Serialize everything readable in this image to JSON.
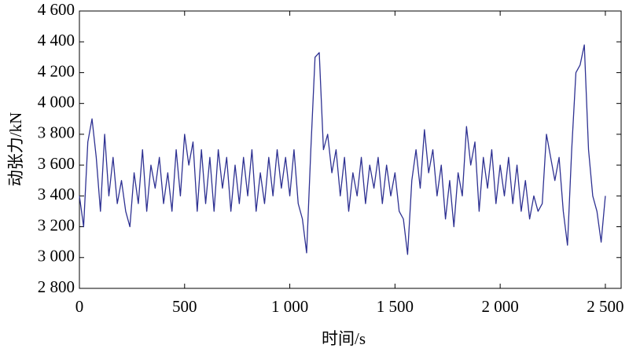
{
  "chart_data": {
    "type": "line",
    "x_label": "时间/s",
    "y_label": "动张力/kN",
    "xlim": [
      0,
      2575
    ],
    "ylim": [
      2800,
      4600
    ],
    "xticks": [
      0,
      500,
      {
        "value": 1000,
        "label": "1 000"
      },
      {
        "value": 1500,
        "label": "1 500"
      },
      {
        "value": 2000,
        "label": "2 000"
      },
      {
        "value": 2500,
        "label": "2 500"
      }
    ],
    "yticks": [
      {
        "value": 2800,
        "label": "2 800"
      },
      {
        "value": 3000,
        "label": "3 000"
      },
      {
        "value": 3200,
        "label": "3 200"
      },
      {
        "value": 3400,
        "label": "3 400"
      },
      {
        "value": 3600,
        "label": "3 600"
      },
      {
        "value": 3800,
        "label": "3 800"
      },
      {
        "value": 4000,
        "label": "4 000"
      },
      {
        "value": 4200,
        "label": "4 200"
      },
      {
        "value": 4400,
        "label": "4 400"
      },
      {
        "value": 4600,
        "label": "4 600"
      }
    ],
    "x": [
      0,
      20,
      40,
      60,
      80,
      100,
      120,
      140,
      160,
      180,
      200,
      220,
      240,
      260,
      280,
      300,
      320,
      340,
      360,
      380,
      400,
      420,
      440,
      460,
      480,
      500,
      520,
      540,
      560,
      580,
      600,
      620,
      640,
      660,
      680,
      700,
      720,
      740,
      760,
      780,
      800,
      820,
      840,
      860,
      880,
      900,
      920,
      940,
      960,
      980,
      1000,
      1020,
      1040,
      1060,
      1080,
      1100,
      1120,
      1140,
      1160,
      1180,
      1200,
      1220,
      1240,
      1260,
      1280,
      1300,
      1320,
      1340,
      1360,
      1380,
      1400,
      1420,
      1440,
      1460,
      1480,
      1500,
      1520,
      1540,
      1560,
      1580,
      1600,
      1620,
      1640,
      1660,
      1680,
      1700,
      1720,
      1740,
      1760,
      1780,
      1800,
      1820,
      1840,
      1860,
      1880,
      1900,
      1920,
      1940,
      1960,
      1980,
      2000,
      2020,
      2040,
      2060,
      2080,
      2100,
      2120,
      2140,
      2160,
      2180,
      2200,
      2220,
      2240,
      2260,
      2280,
      2300,
      2320,
      2340,
      2360,
      2380,
      2400,
      2420,
      2440,
      2460,
      2480,
      2500
    ],
    "series": [
      {
        "color": "#2e3192",
        "values": [
          3400,
          3200,
          3750,
          3900,
          3650,
          3300,
          3800,
          3400,
          3650,
          3350,
          3500,
          3300,
          3200,
          3550,
          3350,
          3700,
          3300,
          3600,
          3450,
          3650,
          3350,
          3550,
          3300,
          3700,
          3400,
          3800,
          3600,
          3750,
          3300,
          3700,
          3350,
          3650,
          3300,
          3700,
          3450,
          3650,
          3300,
          3600,
          3350,
          3650,
          3400,
          3700,
          3300,
          3550,
          3350,
          3650,
          3400,
          3700,
          3450,
          3650,
          3400,
          3700,
          3350,
          3250,
          3030,
          3700,
          4300,
          4330,
          3700,
          3800,
          3550,
          3700,
          3400,
          3650,
          3300,
          3550,
          3400,
          3650,
          3350,
          3600,
          3450,
          3650,
          3350,
          3600,
          3400,
          3550,
          3300,
          3250,
          3020,
          3500,
          3700,
          3450,
          3830,
          3550,
          3700,
          3400,
          3600,
          3250,
          3500,
          3200,
          3550,
          3400,
          3850,
          3600,
          3750,
          3300,
          3650,
          3450,
          3700,
          3350,
          3600,
          3400,
          3650,
          3350,
          3600,
          3300,
          3500,
          3250,
          3400,
          3300,
          3350,
          3800,
          3650,
          3500,
          3650,
          3300,
          3080,
          3700,
          4200,
          4250,
          4380,
          3700,
          3400,
          3300,
          3100,
          3400
        ]
      }
    ]
  }
}
